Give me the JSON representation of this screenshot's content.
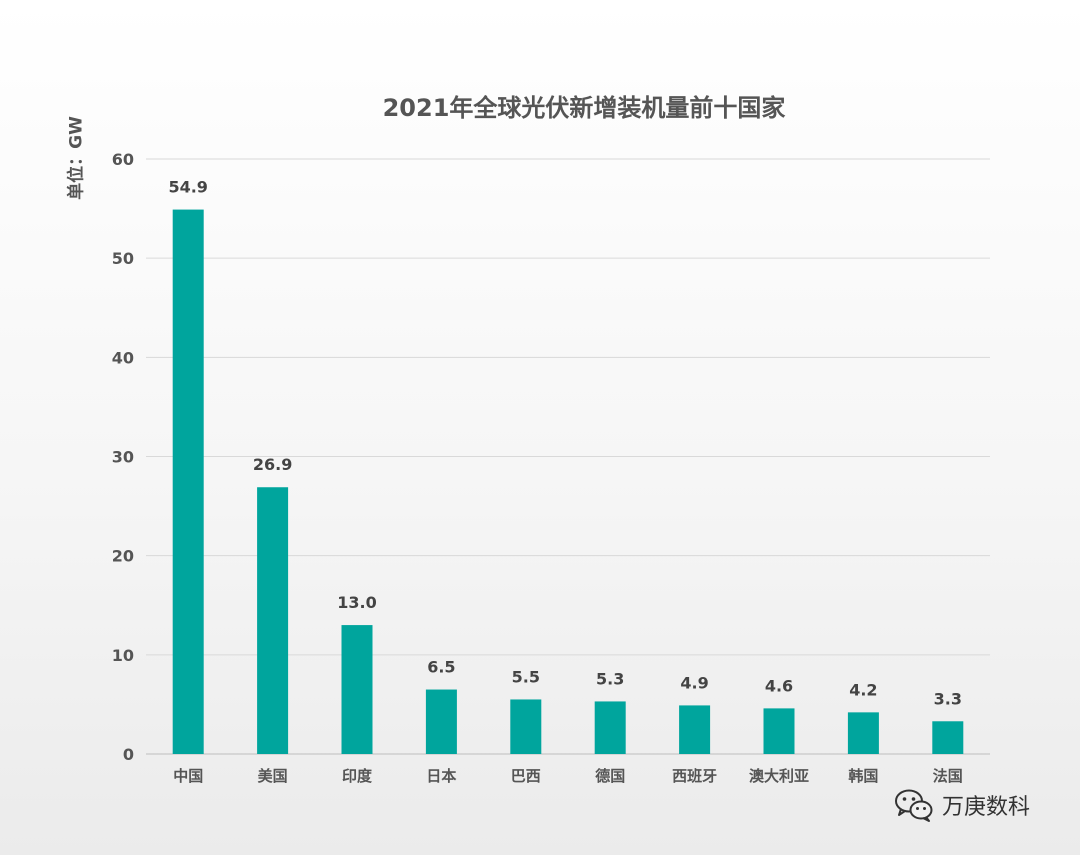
{
  "chart_data": {
    "type": "bar",
    "title": "2021年全球光伏新增装机量前十国家",
    "ylabel": "单位：GW",
    "xlabel": "",
    "categories": [
      "中国",
      "美国",
      "印度",
      "日本",
      "巴西",
      "德国",
      "西班牙",
      "澳大利亚",
      "韩国",
      "法国"
    ],
    "values": [
      54.9,
      26.9,
      13.0,
      6.5,
      5.5,
      5.3,
      4.9,
      4.6,
      4.2,
      3.3
    ],
    "value_labels": [
      "54.9",
      "26.9",
      "13.0",
      "6.5",
      "5.5",
      "5.3",
      "4.9",
      "4.6",
      "4.2",
      "3.3"
    ],
    "ylim": [
      0,
      60
    ],
    "yticks": [
      0,
      10,
      20,
      30,
      40,
      50,
      60
    ],
    "grid": true,
    "bar_color": "#00A59D"
  },
  "watermark": {
    "text": "万庚数科",
    "icon": "wechat-icon"
  }
}
